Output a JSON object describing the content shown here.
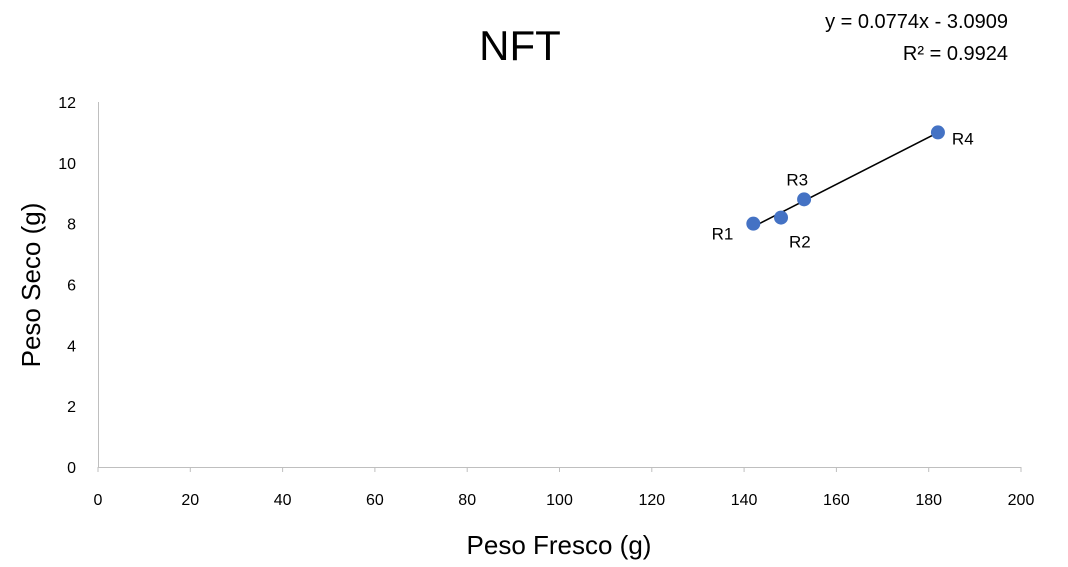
{
  "chart_data": {
    "type": "scatter",
    "title": "NFT",
    "xlabel": "Peso Fresco (g)",
    "ylabel": "Peso Seco (g)",
    "xlim": [
      0,
      200
    ],
    "ylim": [
      0,
      12
    ],
    "x_ticks": [
      "0",
      "20",
      "40",
      "60",
      "80",
      "100",
      "120",
      "140",
      "160",
      "180",
      "200"
    ],
    "y_ticks": [
      "0",
      "2",
      "4",
      "6",
      "8",
      "10",
      "12"
    ],
    "grid": false,
    "legend": "none",
    "point_color": "#4472C4",
    "points": [
      {
        "label": "R1",
        "x": 142,
        "y": 8.0
      },
      {
        "label": "R2",
        "x": 148,
        "y": 8.2
      },
      {
        "label": "R3",
        "x": 153,
        "y": 8.8
      },
      {
        "label": "R4",
        "x": 182,
        "y": 11.0
      }
    ],
    "trendline": {
      "type": "linear",
      "slope": 0.0774,
      "intercept": -3.0909,
      "x_range": [
        142,
        182
      ],
      "equation": "y = 0.0774x - 3.0909",
      "r_squared": "R² = 0.9924"
    }
  }
}
